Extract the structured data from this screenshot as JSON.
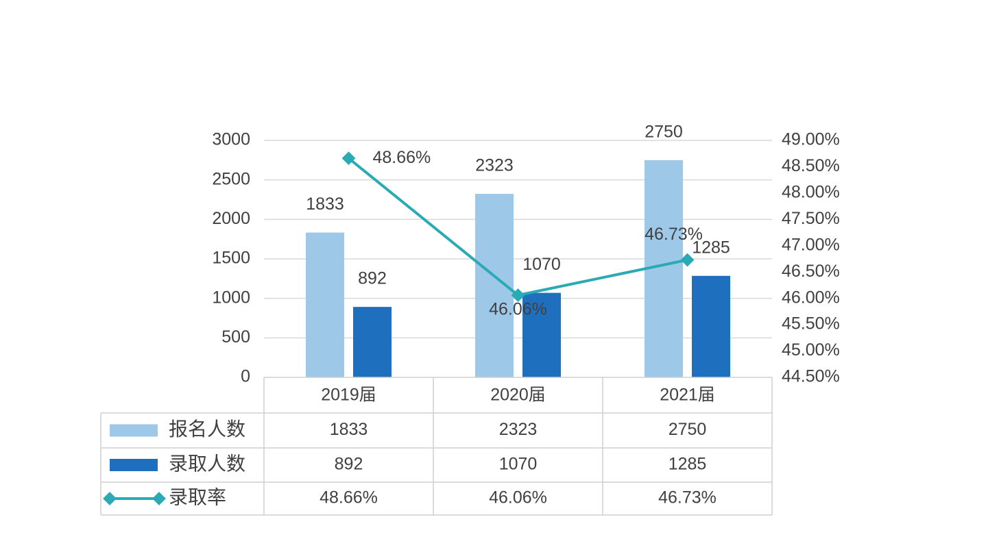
{
  "chart_data": {
    "type": "bar-line",
    "categories": [
      "2019届",
      "2020届",
      "2021届"
    ],
    "series": [
      {
        "name": "报名人数",
        "color": "#9dc8e8",
        "type": "bar",
        "values": [
          1833,
          2323,
          2750
        ]
      },
      {
        "name": "录取人数",
        "color": "#1f6fbf",
        "type": "bar",
        "values": [
          892,
          1070,
          1285
        ]
      },
      {
        "name": "录取率",
        "color": "#2aaab5",
        "type": "line",
        "axis": "y2",
        "values": [
          48.66,
          46.06,
          46.73
        ],
        "value_labels": [
          "48.66%",
          "46.06%",
          "46.73%"
        ]
      }
    ],
    "ylim": [
      0,
      3000
    ],
    "yticks": [
      0,
      500,
      1000,
      1500,
      2000,
      2500,
      3000
    ],
    "y2lim": [
      44.5,
      49
    ],
    "y2ticks": [
      {
        "value": 44.5,
        "label": "44.50%"
      },
      {
        "value": 45,
        "label": "45.00%"
      },
      {
        "value": 45.5,
        "label": "45.50%"
      },
      {
        "value": 46,
        "label": "46.00%"
      },
      {
        "value": 46.5,
        "label": "46.50%"
      },
      {
        "value": 47,
        "label": "47.00%"
      },
      {
        "value": 47.5,
        "label": "47.50%"
      },
      {
        "value": 48,
        "label": "48.00%"
      },
      {
        "value": 48.5,
        "label": "48.50%"
      },
      {
        "value": 49,
        "label": "49.00%"
      }
    ],
    "grid": true,
    "data_table": true
  }
}
